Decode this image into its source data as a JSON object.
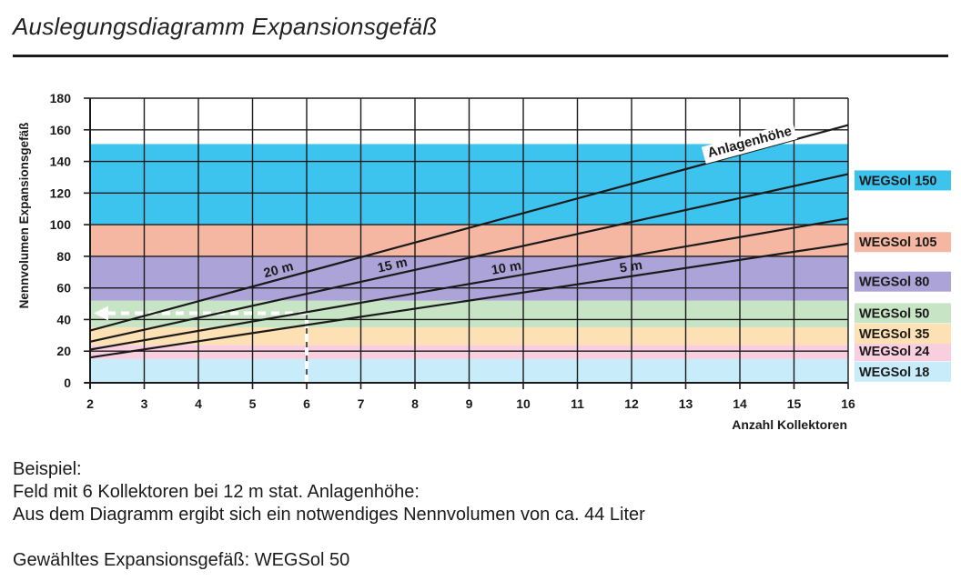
{
  "chart_data": {
    "type": "line",
    "title": "Auslegungsdiagramm Expansionsgefäß",
    "xlabel": "Anzahl Kollektoren",
    "ylabel": "Nennvolumen Expansionsgefäß",
    "xlim": [
      2,
      16
    ],
    "ylim": [
      0,
      180
    ],
    "xticks": [
      2,
      3,
      4,
      5,
      6,
      7,
      8,
      9,
      10,
      11,
      12,
      13,
      14,
      15,
      16
    ],
    "yticks": [
      0,
      20,
      40,
      60,
      80,
      100,
      120,
      140,
      160,
      180
    ],
    "grid": true,
    "curve_group_label": "Anlagenhöhe",
    "series": [
      {
        "name": "20 m",
        "x": [
          2,
          16
        ],
        "y": [
          33,
          163
        ]
      },
      {
        "name": "15 m",
        "x": [
          2,
          16
        ],
        "y": [
          26,
          132
        ]
      },
      {
        "name": "10 m",
        "x": [
          2,
          16
        ],
        "y": [
          21,
          104
        ]
      },
      {
        "name": "5 m",
        "x": [
          2,
          16
        ],
        "y": [
          16,
          88
        ]
      }
    ],
    "bands": [
      {
        "label": "WEGSol 18",
        "y0": 0,
        "y1": 15,
        "color": "#c8ecfa"
      },
      {
        "label": "WEGSol 24",
        "y0": 15,
        "y1": 24,
        "color": "#f9cfe0"
      },
      {
        "label": "WEGSol 35",
        "y0": 24,
        "y1": 35,
        "color": "#fde0b4"
      },
      {
        "label": "WEGSol 50",
        "y0": 35,
        "y1": 52,
        "color": "#c7e4c4"
      },
      {
        "label": "WEGSol 80",
        "y0": 52,
        "y1": 80,
        "color": "#aca4d8"
      },
      {
        "label": "WEGSol 105",
        "y0": 80,
        "y1": 100,
        "color": "#f5b7a1"
      },
      {
        "label": "WEGSol 150",
        "y0": 100,
        "y1": 151,
        "color": "#3cc4ef"
      }
    ],
    "example_path": {
      "x": 6,
      "y": 44
    }
  },
  "example": {
    "heading": "Beispiel:",
    "line1": "Feld mit 6 Kollektoren bei 12 m stat. Anlagenhöhe:",
    "line2": "Aus dem Diagramm ergibt sich ein notwendiges Nennvolumen von ca. 44 Liter",
    "result": "Gewähltes Expansionsgefäß: WEGSol 50"
  }
}
